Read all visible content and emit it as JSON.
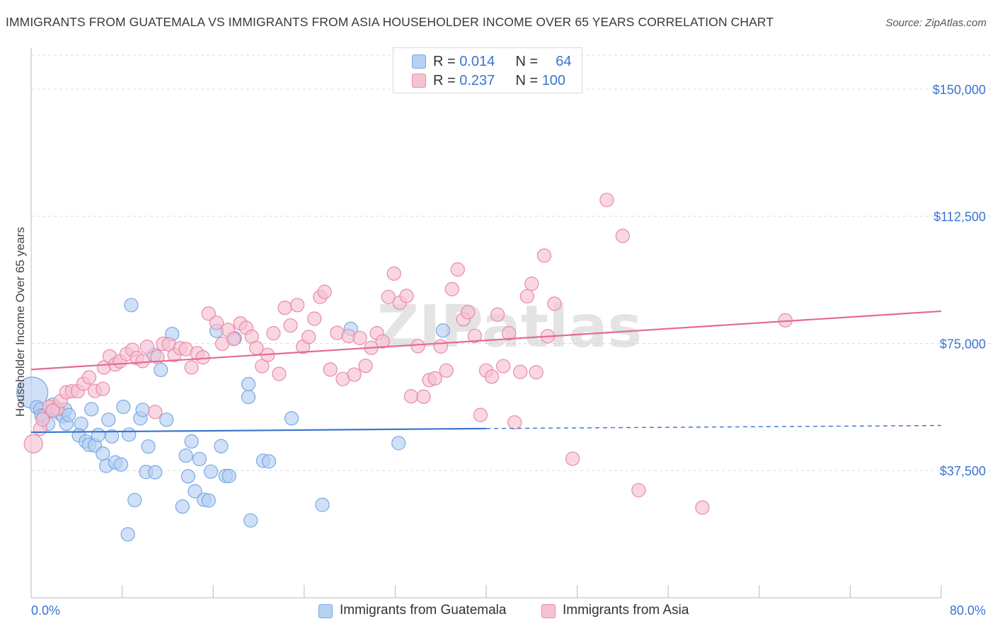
{
  "title": "IMMIGRANTS FROM GUATEMALA VS IMMIGRANTS FROM ASIA HOUSEHOLDER INCOME OVER 65 YEARS CORRELATION CHART",
  "source": "Source: ZipAtlas.com",
  "watermark": "ZIPatlas",
  "legend": {
    "rows": [
      {
        "r_label": "R =",
        "r_value": "0.014",
        "n_label": "N =",
        "n_value": "64",
        "color": "#7aa8e6",
        "fill": "#b6d0f2"
      },
      {
        "r_label": "R =",
        "r_value": "0.237",
        "n_label": "N =",
        "n_value": "100",
        "color": "#e88aa8",
        "fill": "#f6c2d2"
      }
    ]
  },
  "bottom_legend": {
    "series1": "Immigrants from Guatemala",
    "series2": "Immigrants from Asia"
  },
  "colors": {
    "blue_fill": "#b6d0f2",
    "blue_stroke": "#7aa8e6",
    "blue_line": "#3a74d2",
    "pink_fill": "#f6c2d2",
    "pink_stroke": "#e88aa8",
    "pink_line": "#e36a94",
    "axis_label": "#3a74d2",
    "grid": "#dddddd"
  },
  "chart_data": {
    "type": "scatter",
    "title": "IMMIGRANTS FROM GUATEMALA VS IMMIGRANTS FROM ASIA HOUSEHOLDER INCOME OVER 65 YEARS CORRELATION CHART",
    "xlabel": "",
    "ylabel": "Householder Income Over 65 years",
    "xlim": [
      0,
      80
    ],
    "ylim": [
      0,
      160000
    ],
    "x_tick_labels": {
      "0": "0.0%",
      "80": "80.0%"
    },
    "y_ticks": [
      37500,
      75000,
      112500,
      150000
    ],
    "y_tick_labels": [
      "$37,500",
      "$75,000",
      "$112,500",
      "$150,000"
    ],
    "grid": true,
    "legend_position": "top-center",
    "series": [
      {
        "name": "Immigrants from Guatemala",
        "R": 0.014,
        "N": 64,
        "trend": {
          "x": [
            0,
            40
          ],
          "y": [
            48800,
            49900
          ],
          "dashed_to_x": 80,
          "dashed_to_y": 50800
        },
        "points": [
          [
            0.1,
            60500
          ],
          [
            0.5,
            56200
          ],
          [
            0.8,
            55500
          ],
          [
            0.9,
            53800
          ],
          [
            1.1,
            53500
          ],
          [
            1.5,
            51300
          ],
          [
            1.9,
            56900
          ],
          [
            2.0,
            55400
          ],
          [
            2.4,
            54600
          ],
          [
            2.8,
            53500
          ],
          [
            3.0,
            55500
          ],
          [
            3.1,
            51300
          ],
          [
            3.3,
            53900
          ],
          [
            4.4,
            51300
          ],
          [
            5.3,
            55600
          ],
          [
            4.2,
            47900
          ],
          [
            4.8,
            46100
          ],
          [
            5.1,
            45100
          ],
          [
            5.6,
            44900
          ],
          [
            5.9,
            48000
          ],
          [
            6.3,
            42500
          ],
          [
            6.6,
            38900
          ],
          [
            6.8,
            52500
          ],
          [
            7.1,
            47600
          ],
          [
            7.4,
            39900
          ],
          [
            7.9,
            39300
          ],
          [
            8.1,
            56300
          ],
          [
            8.6,
            48100
          ],
          [
            8.8,
            86300
          ],
          [
            9.1,
            28800
          ],
          [
            9.6,
            52900
          ],
          [
            9.8,
            55400
          ],
          [
            10.1,
            37100
          ],
          [
            10.3,
            44600
          ],
          [
            10.8,
            71600
          ],
          [
            10.9,
            37000
          ],
          [
            11.4,
            67200
          ],
          [
            11.9,
            52500
          ],
          [
            12.4,
            77800
          ],
          [
            13.3,
            26900
          ],
          [
            13.6,
            41900
          ],
          [
            13.8,
            35800
          ],
          [
            14.1,
            46100
          ],
          [
            14.4,
            31400
          ],
          [
            14.8,
            40900
          ],
          [
            15.2,
            28900
          ],
          [
            15.6,
            28700
          ],
          [
            15.8,
            37200
          ],
          [
            16.3,
            78700
          ],
          [
            16.7,
            44700
          ],
          [
            17.1,
            35900
          ],
          [
            17.4,
            35900
          ],
          [
            17.9,
            76500
          ],
          [
            19.3,
            22800
          ],
          [
            19.1,
            59200
          ],
          [
            19.1,
            63000
          ],
          [
            20.4,
            40400
          ],
          [
            20.9,
            40200
          ],
          [
            22.9,
            52900
          ],
          [
            25.6,
            27400
          ],
          [
            28.1,
            79300
          ],
          [
            32.3,
            45600
          ],
          [
            36.2,
            78800
          ],
          [
            8.5,
            18700
          ]
        ]
      },
      {
        "name": "Immigrants from Asia",
        "R": 0.237,
        "N": 100,
        "trend": {
          "x": [
            0,
            80
          ],
          "y": [
            67300,
            84500
          ]
        },
        "points": [
          [
            0.2,
            45400
          ],
          [
            0.8,
            49800
          ],
          [
            1.0,
            52600
          ],
          [
            1.6,
            56300
          ],
          [
            2.3,
            55700
          ],
          [
            2.6,
            58000
          ],
          [
            3.1,
            60600
          ],
          [
            3.6,
            60900
          ],
          [
            4.1,
            60900
          ],
          [
            4.6,
            63100
          ],
          [
            5.1,
            65000
          ],
          [
            5.6,
            61000
          ],
          [
            6.3,
            61600
          ],
          [
            6.4,
            67900
          ],
          [
            6.9,
            71200
          ],
          [
            7.4,
            68800
          ],
          [
            7.8,
            69700
          ],
          [
            8.4,
            71900
          ],
          [
            8.9,
            73100
          ],
          [
            9.3,
            70700
          ],
          [
            9.8,
            69800
          ],
          [
            10.2,
            74000
          ],
          [
            10.9,
            54800
          ],
          [
            11.1,
            71000
          ],
          [
            11.6,
            74900
          ],
          [
            12.1,
            74700
          ],
          [
            12.6,
            71600
          ],
          [
            13.1,
            73600
          ],
          [
            13.6,
            73300
          ],
          [
            14.1,
            67900
          ],
          [
            14.6,
            72100
          ],
          [
            15.1,
            70900
          ],
          [
            15.6,
            83800
          ],
          [
            16.3,
            81100
          ],
          [
            16.8,
            74900
          ],
          [
            17.3,
            79000
          ],
          [
            17.8,
            76300
          ],
          [
            18.4,
            80900
          ],
          [
            18.9,
            79600
          ],
          [
            19.4,
            77000
          ],
          [
            19.8,
            73700
          ],
          [
            20.3,
            68300
          ],
          [
            20.8,
            71600
          ],
          [
            21.3,
            78000
          ],
          [
            21.8,
            66000
          ],
          [
            22.3,
            85500
          ],
          [
            22.8,
            80300
          ],
          [
            23.4,
            86300
          ],
          [
            23.9,
            74000
          ],
          [
            24.4,
            76900
          ],
          [
            24.9,
            82300
          ],
          [
            25.4,
            88700
          ],
          [
            25.8,
            90200
          ],
          [
            26.3,
            67300
          ],
          [
            26.9,
            78100
          ],
          [
            27.4,
            64500
          ],
          [
            27.9,
            77200
          ],
          [
            28.4,
            65800
          ],
          [
            28.9,
            76600
          ],
          [
            29.4,
            68400
          ],
          [
            29.9,
            73700
          ],
          [
            30.4,
            78000
          ],
          [
            30.9,
            75600
          ],
          [
            31.4,
            88700
          ],
          [
            31.9,
            95600
          ],
          [
            32.4,
            87000
          ],
          [
            33.0,
            89000
          ],
          [
            33.4,
            59400
          ],
          [
            34.0,
            74200
          ],
          [
            34.5,
            59300
          ],
          [
            35.0,
            64200
          ],
          [
            35.5,
            64700
          ],
          [
            36.0,
            74100
          ],
          [
            36.5,
            67000
          ],
          [
            37.0,
            91000
          ],
          [
            37.5,
            96800
          ],
          [
            38.0,
            82100
          ],
          [
            38.4,
            84200
          ],
          [
            39.0,
            77200
          ],
          [
            39.5,
            53900
          ],
          [
            40.0,
            67000
          ],
          [
            40.5,
            65200
          ],
          [
            41.0,
            83500
          ],
          [
            41.5,
            68300
          ],
          [
            42.0,
            78000
          ],
          [
            42.5,
            51700
          ],
          [
            43.0,
            66600
          ],
          [
            43.6,
            88900
          ],
          [
            44.0,
            92600
          ],
          [
            44.4,
            66500
          ],
          [
            45.1,
            100900
          ],
          [
            45.4,
            77100
          ],
          [
            46.0,
            86700
          ],
          [
            47.6,
            41000
          ],
          [
            50.6,
            117300
          ],
          [
            52.0,
            106700
          ],
          [
            53.4,
            31700
          ],
          [
            59.0,
            26600
          ],
          [
            66.3,
            81800
          ],
          [
            1.9,
            55200
          ]
        ]
      }
    ]
  }
}
